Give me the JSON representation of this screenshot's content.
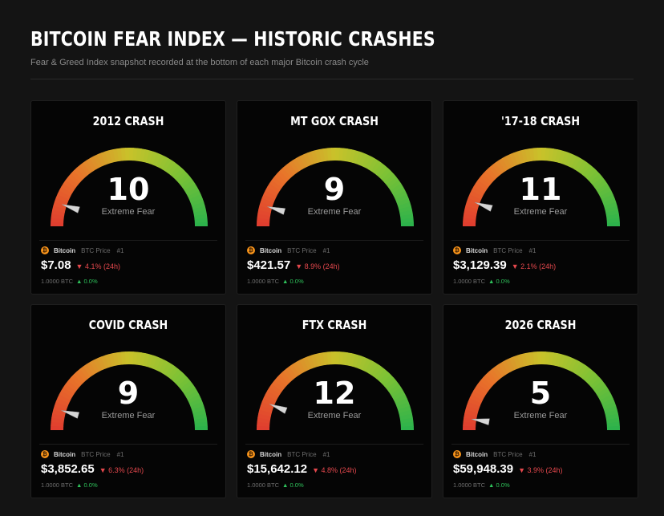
{
  "header": {
    "title": "BITCOIN FEAR INDEX — HISTORIC CRASHES",
    "subtitle": "Fear & Greed Index snapshot recorded at the bottom of each major Bitcoin crash cycle"
  },
  "colors": {
    "background": "#141414",
    "card": "#050505",
    "fear_red": "#e03c2f",
    "mid_yellow": "#c9c22a",
    "greed_green": "#2bb24c",
    "down": "#e5484d",
    "up": "#2fc25b",
    "btc_orange": "#f7931a"
  },
  "gauge_scale": {
    "min": 0,
    "max": 100
  },
  "cards": [
    {
      "title": "2012 CRASH",
      "value": "10",
      "level": 10,
      "label": "Extreme Fear",
      "coin": {
        "icon": "₿",
        "name": "Bitcoin",
        "sub": "BTC Price",
        "rank": "#1"
      },
      "price": "$7.08",
      "change": "▼ 4.1% (24h)",
      "holding": "1.0000 BTC",
      "holding_change": "▲ 0.0%"
    },
    {
      "title": "MT GOX CRASH",
      "value": "9",
      "level": 9,
      "label": "Extreme Fear",
      "coin": {
        "icon": "₿",
        "name": "Bitcoin",
        "sub": "BTC Price",
        "rank": "#1"
      },
      "price": "$421.57",
      "change": "▼ 8.9% (24h)",
      "holding": "1.0000 BTC",
      "holding_change": "▲ 0.0%"
    },
    {
      "title": "'17-18 CRASH",
      "value": "11",
      "level": 11,
      "label": "Extreme Fear",
      "coin": {
        "icon": "₿",
        "name": "Bitcoin",
        "sub": "BTC Price",
        "rank": "#1"
      },
      "price": "$3,129.39",
      "change": "▼ 2.1% (24h)",
      "holding": "1.0000 BTC",
      "holding_change": "▲ 0.0%"
    },
    {
      "title": "COVID CRASH",
      "value": "9",
      "level": 9,
      "label": "Extreme Fear",
      "coin": {
        "icon": "₿",
        "name": "Bitcoin",
        "sub": "BTC Price",
        "rank": "#1"
      },
      "price": "$3,852.65",
      "change": "▼ 6.3% (24h)",
      "holding": "1.0000 BTC",
      "holding_change": "▲ 0.0%"
    },
    {
      "title": "FTX CRASH",
      "value": "12",
      "level": 12,
      "label": "Extreme Fear",
      "coin": {
        "icon": "₿",
        "name": "Bitcoin",
        "sub": "BTC Price",
        "rank": "#1"
      },
      "price": "$15,642.12",
      "change": "▼ 4.8% (24h)",
      "holding": "1.0000 BTC",
      "holding_change": "▲ 0.0%"
    },
    {
      "title": "2026 CRASH",
      "value": "5",
      "level": 5,
      "label": "Extreme Fear",
      "coin": {
        "icon": "₿",
        "name": "Bitcoin",
        "sub": "BTC Price",
        "rank": "#1"
      },
      "price": "$59,948.39",
      "change": "▼ 3.9% (24h)",
      "holding": "1.0000 BTC",
      "holding_change": "▲ 0.0%"
    }
  ]
}
